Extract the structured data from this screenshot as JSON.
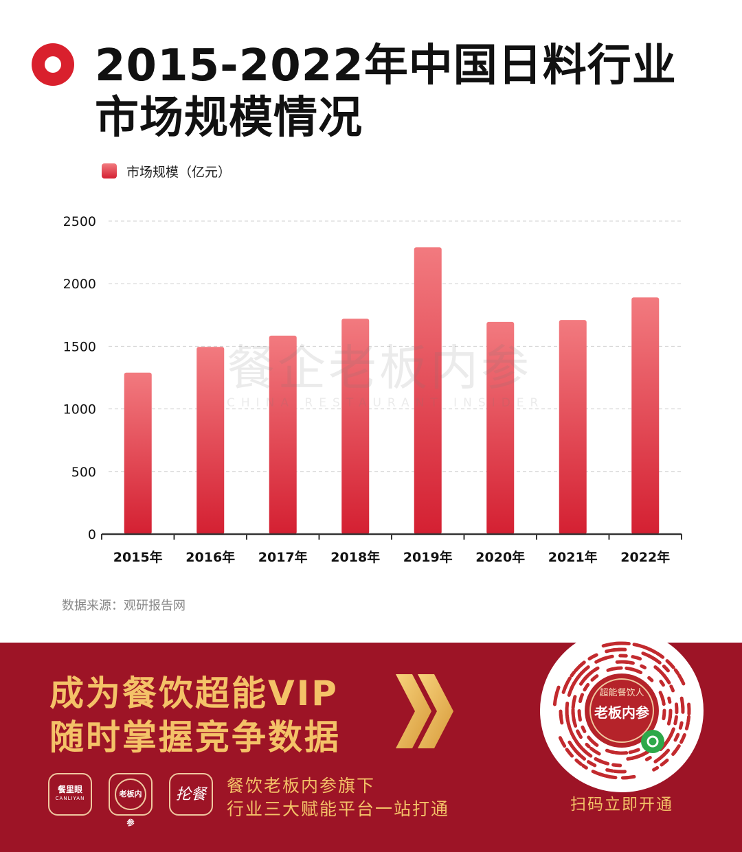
{
  "header": {
    "icon": "record-circle-icon",
    "title_line1": "2015-2022年中国日料行业",
    "title_line2": "市场规模情况"
  },
  "watermark": {
    "text_cn": "餐企老板内参",
    "text_en": "CHINA RESTAURANT INSIDER"
  },
  "chart_data": {
    "type": "bar",
    "categories": [
      "2015年",
      "2016年",
      "2017年",
      "2018年",
      "2019年",
      "2020年",
      "2021年",
      "2022年"
    ],
    "series": [
      {
        "name": "市场规模（亿元）",
        "values": [
          1290,
          1495,
          1585,
          1720,
          2290,
          1695,
          1710,
          1890
        ]
      }
    ],
    "yticks": [
      0,
      500,
      1000,
      1500,
      2000,
      2500
    ],
    "ylim": [
      0,
      2500
    ],
    "grid": true,
    "legend_position": "top-left",
    "bar_color_top": "#f27a7f",
    "bar_color_bottom": "#d42032"
  },
  "source": "数据来源：观研报告网",
  "banner": {
    "background": "#9d1426",
    "accent": "#f4c268",
    "promo_line1": "成为餐饮超能VIP",
    "promo_line2": "随时掌握竞争数据",
    "arrow_icon": "double-chevron-right-icon",
    "logos": {
      "canliyan_cn": "餐里眼",
      "canliyan_en": "CANLIYAN",
      "seal_text": "老板内参",
      "lunzan": "抡餐"
    },
    "platform_line1": "餐饮老板内参旗下",
    "platform_line2": "行业三大赋能平台一站打通",
    "qr_seal_top": "超能餐饮人",
    "qr_seal_center": "老板内参",
    "qr_caption": "扫码立即开通"
  }
}
